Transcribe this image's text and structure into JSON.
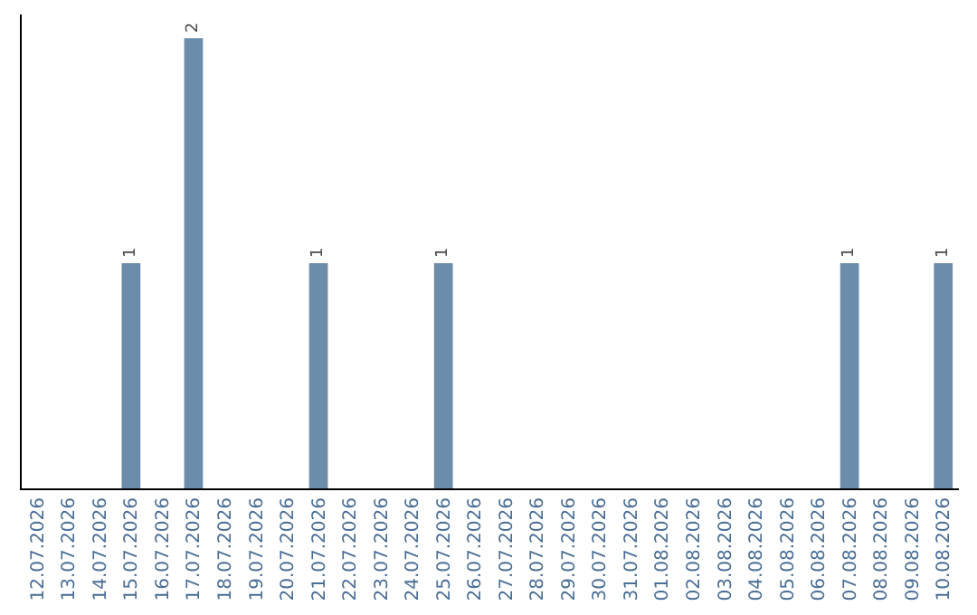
{
  "chart_data": {
    "type": "bar",
    "categories": [
      "12.07.2026",
      "13.07.2026",
      "14.07.2026",
      "15.07.2026",
      "16.07.2026",
      "17.07.2026",
      "18.07.2026",
      "19.07.2026",
      "20.07.2026",
      "21.07.2026",
      "22.07.2026",
      "23.07.2026",
      "24.07.2026",
      "25.07.2026",
      "26.07.2026",
      "27.07.2026",
      "28.07.2026",
      "29.07.2026",
      "30.07.2026",
      "31.07.2026",
      "01.08.2026",
      "02.08.2026",
      "03.08.2026",
      "04.08.2026",
      "05.08.2026",
      "06.08.2026",
      "07.08.2026",
      "08.08.2026",
      "09.08.2026",
      "10.08.2026"
    ],
    "values": [
      0,
      0,
      0,
      1,
      0,
      2,
      0,
      0,
      0,
      1,
      0,
      0,
      0,
      1,
      0,
      0,
      0,
      0,
      0,
      0,
      0,
      0,
      0,
      0,
      0,
      0,
      1,
      0,
      0,
      1
    ],
    "value_labels": [
      null,
      null,
      null,
      "1",
      null,
      "2",
      null,
      null,
      null,
      "1",
      null,
      null,
      null,
      "1",
      null,
      null,
      null,
      null,
      null,
      null,
      null,
      null,
      null,
      null,
      null,
      null,
      "1",
      null,
      null,
      "1"
    ],
    "color": "#6b8cab",
    "tick_labels": "x",
    "legend": false
  }
}
